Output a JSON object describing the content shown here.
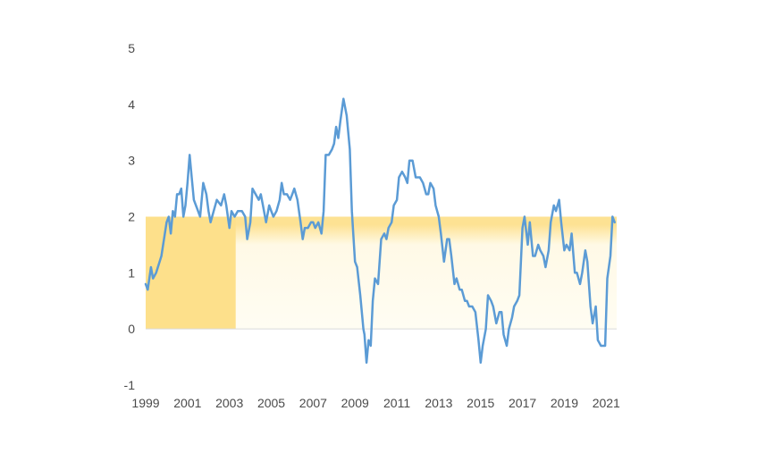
{
  "chart_data": {
    "type": "line",
    "title": "",
    "xlabel": "",
    "ylabel": "",
    "xlim": [
      1999.0,
      2021.5
    ],
    "ylim": [
      -1,
      5
    ],
    "y_ticks": [
      5,
      4,
      3,
      2,
      1,
      0,
      -1
    ],
    "x_ticks": [
      1999,
      2001,
      2003,
      2005,
      2007,
      2009,
      2011,
      2013,
      2015,
      2017,
      2019,
      2021
    ],
    "grid": false,
    "legend": "none",
    "colors": {
      "line": "#5b9bd5",
      "band": "#fde293",
      "band_solid": "#fde08b",
      "band_fade": "#fff9e6",
      "zero_line": "#d9d9d9"
    },
    "bands": [
      {
        "name": "price-stability-band",
        "x": [
          1999.0,
          2021.5
        ],
        "y": [
          0,
          2
        ]
      },
      {
        "name": "early-period-band",
        "x": [
          1999.0,
          2003.3
        ],
        "y": [
          0,
          2
        ]
      }
    ],
    "series": [
      {
        "values": [
          [
            1999.0,
            0.8
          ],
          [
            1999.1,
            0.7
          ],
          [
            1999.25,
            1.1
          ],
          [
            1999.35,
            0.9
          ],
          [
            1999.5,
            1.0
          ],
          [
            1999.75,
            1.3
          ],
          [
            2000.0,
            1.9
          ],
          [
            2000.1,
            2.0
          ],
          [
            2000.2,
            1.7
          ],
          [
            2000.3,
            2.1
          ],
          [
            2000.4,
            2.0
          ],
          [
            2000.5,
            2.4
          ],
          [
            2000.6,
            2.4
          ],
          [
            2000.7,
            2.5
          ],
          [
            2000.8,
            2.0
          ],
          [
            2000.9,
            2.2
          ],
          [
            2001.0,
            2.6
          ],
          [
            2001.1,
            3.1
          ],
          [
            2001.2,
            2.7
          ],
          [
            2001.3,
            2.3
          ],
          [
            2001.5,
            2.1
          ],
          [
            2001.6,
            2.0
          ],
          [
            2001.75,
            2.6
          ],
          [
            2001.9,
            2.4
          ],
          [
            2002.0,
            2.1
          ],
          [
            2002.1,
            1.9
          ],
          [
            2002.25,
            2.1
          ],
          [
            2002.4,
            2.3
          ],
          [
            2002.6,
            2.2
          ],
          [
            2002.75,
            2.4
          ],
          [
            2002.85,
            2.2
          ],
          [
            2003.0,
            1.8
          ],
          [
            2003.1,
            2.1
          ],
          [
            2003.25,
            2.0
          ],
          [
            2003.4,
            2.1
          ],
          [
            2003.6,
            2.1
          ],
          [
            2003.75,
            2.0
          ],
          [
            2003.85,
            1.6
          ],
          [
            2004.0,
            1.9
          ],
          [
            2004.1,
            2.5
          ],
          [
            2004.25,
            2.4
          ],
          [
            2004.4,
            2.3
          ],
          [
            2004.5,
            2.4
          ],
          [
            2004.6,
            2.2
          ],
          [
            2004.75,
            1.9
          ],
          [
            2004.9,
            2.2
          ],
          [
            2005.0,
            2.1
          ],
          [
            2005.1,
            2.0
          ],
          [
            2005.25,
            2.1
          ],
          [
            2005.4,
            2.3
          ],
          [
            2005.5,
            2.6
          ],
          [
            2005.6,
            2.4
          ],
          [
            2005.75,
            2.4
          ],
          [
            2005.9,
            2.3
          ],
          [
            2006.0,
            2.4
          ],
          [
            2006.1,
            2.5
          ],
          [
            2006.25,
            2.3
          ],
          [
            2006.4,
            1.9
          ],
          [
            2006.5,
            1.6
          ],
          [
            2006.6,
            1.8
          ],
          [
            2006.75,
            1.8
          ],
          [
            2006.9,
            1.9
          ],
          [
            2007.0,
            1.9
          ],
          [
            2007.1,
            1.8
          ],
          [
            2007.25,
            1.9
          ],
          [
            2007.4,
            1.7
          ],
          [
            2007.5,
            2.1
          ],
          [
            2007.6,
            3.1
          ],
          [
            2007.75,
            3.1
          ],
          [
            2007.9,
            3.2
          ],
          [
            2008.0,
            3.3
          ],
          [
            2008.1,
            3.6
          ],
          [
            2008.2,
            3.4
          ],
          [
            2008.3,
            3.7
          ],
          [
            2008.45,
            4.1
          ],
          [
            2008.6,
            3.8
          ],
          [
            2008.75,
            3.2
          ],
          [
            2008.85,
            2.1
          ],
          [
            2009.0,
            1.2
          ],
          [
            2009.1,
            1.1
          ],
          [
            2009.25,
            0.6
          ],
          [
            2009.4,
            0.0
          ],
          [
            2009.45,
            -0.1
          ],
          [
            2009.55,
            -0.6
          ],
          [
            2009.65,
            -0.2
          ],
          [
            2009.75,
            -0.3
          ],
          [
            2009.85,
            0.5
          ],
          [
            2009.95,
            0.9
          ],
          [
            2010.1,
            0.8
          ],
          [
            2010.25,
            1.6
          ],
          [
            2010.4,
            1.7
          ],
          [
            2010.5,
            1.6
          ],
          [
            2010.6,
            1.8
          ],
          [
            2010.75,
            1.9
          ],
          [
            2010.85,
            2.2
          ],
          [
            2011.0,
            2.3
          ],
          [
            2011.1,
            2.7
          ],
          [
            2011.25,
            2.8
          ],
          [
            2011.4,
            2.7
          ],
          [
            2011.5,
            2.6
          ],
          [
            2011.6,
            3.0
          ],
          [
            2011.75,
            3.0
          ],
          [
            2011.9,
            2.7
          ],
          [
            2012.0,
            2.7
          ],
          [
            2012.1,
            2.7
          ],
          [
            2012.25,
            2.6
          ],
          [
            2012.4,
            2.4
          ],
          [
            2012.5,
            2.4
          ],
          [
            2012.6,
            2.6
          ],
          [
            2012.75,
            2.5
          ],
          [
            2012.85,
            2.2
          ],
          [
            2013.0,
            2.0
          ],
          [
            2013.1,
            1.7
          ],
          [
            2013.25,
            1.2
          ],
          [
            2013.4,
            1.6
          ],
          [
            2013.5,
            1.6
          ],
          [
            2013.6,
            1.3
          ],
          [
            2013.75,
            0.8
          ],
          [
            2013.85,
            0.9
          ],
          [
            2014.0,
            0.7
          ],
          [
            2014.1,
            0.7
          ],
          [
            2014.25,
            0.5
          ],
          [
            2014.35,
            0.5
          ],
          [
            2014.45,
            0.4
          ],
          [
            2014.6,
            0.4
          ],
          [
            2014.75,
            0.3
          ],
          [
            2014.9,
            -0.2
          ],
          [
            2015.0,
            -0.6
          ],
          [
            2015.1,
            -0.3
          ],
          [
            2015.25,
            0.0
          ],
          [
            2015.35,
            0.6
          ],
          [
            2015.5,
            0.5
          ],
          [
            2015.6,
            0.4
          ],
          [
            2015.75,
            0.1
          ],
          [
            2015.9,
            0.3
          ],
          [
            2016.0,
            0.3
          ],
          [
            2016.1,
            -0.1
          ],
          [
            2016.25,
            -0.3
          ],
          [
            2016.35,
            0.0
          ],
          [
            2016.5,
            0.2
          ],
          [
            2016.6,
            0.4
          ],
          [
            2016.75,
            0.5
          ],
          [
            2016.85,
            0.6
          ],
          [
            2017.0,
            1.8
          ],
          [
            2017.1,
            2.0
          ],
          [
            2017.25,
            1.5
          ],
          [
            2017.35,
            1.9
          ],
          [
            2017.5,
            1.3
          ],
          [
            2017.6,
            1.3
          ],
          [
            2017.75,
            1.5
          ],
          [
            2017.85,
            1.4
          ],
          [
            2018.0,
            1.3
          ],
          [
            2018.1,
            1.1
          ],
          [
            2018.25,
            1.4
          ],
          [
            2018.35,
            1.9
          ],
          [
            2018.5,
            2.2
          ],
          [
            2018.6,
            2.1
          ],
          [
            2018.75,
            2.3
          ],
          [
            2018.85,
            1.9
          ],
          [
            2019.0,
            1.4
          ],
          [
            2019.1,
            1.5
          ],
          [
            2019.25,
            1.4
          ],
          [
            2019.35,
            1.7
          ],
          [
            2019.5,
            1.0
          ],
          [
            2019.6,
            1.0
          ],
          [
            2019.75,
            0.8
          ],
          [
            2019.85,
            1.0
          ],
          [
            2020.0,
            1.4
          ],
          [
            2020.1,
            1.2
          ],
          [
            2020.25,
            0.4
          ],
          [
            2020.35,
            0.1
          ],
          [
            2020.5,
            0.4
          ],
          [
            2020.6,
            -0.2
          ],
          [
            2020.75,
            -0.3
          ],
          [
            2020.95,
            -0.3
          ],
          [
            2021.05,
            0.9
          ],
          [
            2021.2,
            1.3
          ],
          [
            2021.3,
            2.0
          ],
          [
            2021.4,
            1.9
          ]
        ]
      }
    ]
  }
}
